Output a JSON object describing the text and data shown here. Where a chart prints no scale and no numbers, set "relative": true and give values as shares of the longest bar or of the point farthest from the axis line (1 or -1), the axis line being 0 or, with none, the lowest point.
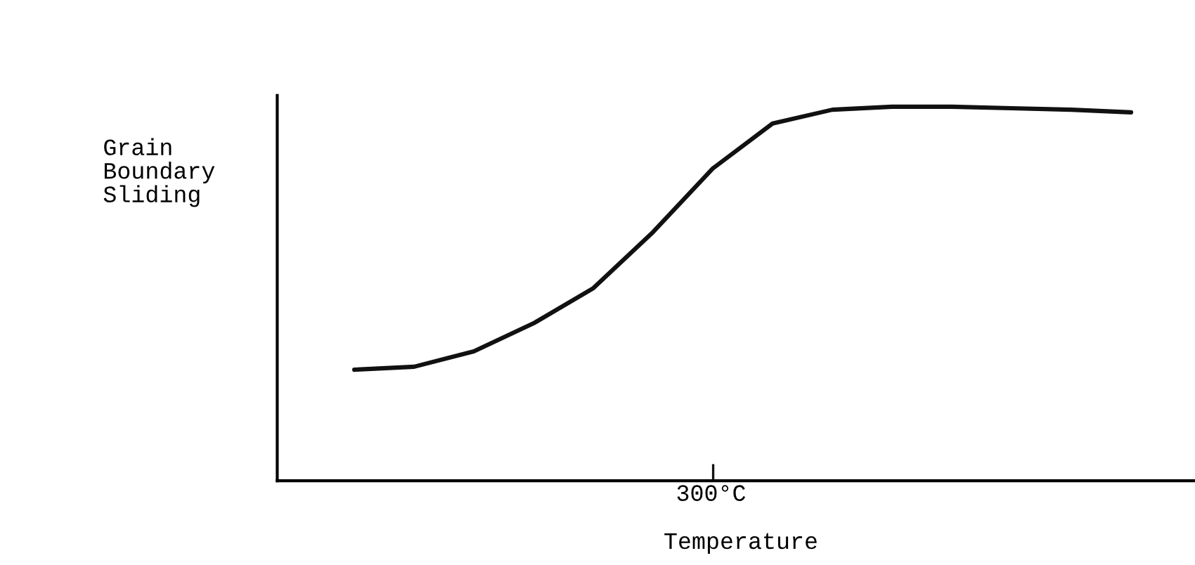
{
  "chart_data": {
    "type": "line",
    "relative": true,
    "xlabel": "Temperature",
    "ylabel": "Grain\nBoundary\nSliding",
    "categories": [
      null,
      null,
      null,
      null,
      null,
      null,
      null,
      null,
      null,
      null,
      null,
      null,
      null,
      null
    ],
    "annotations": [
      "300°C"
    ],
    "series": [
      {
        "color": "#111111",
        "values": [
          0.297,
          0.305,
          0.346,
          0.421,
          0.515,
          0.665,
          0.835,
          0.955,
          0.992,
          1,
          1,
          0.996,
          0.992,
          0.985
        ]
      }
    ],
    "legend": false,
    "marker": "none",
    "line_style": "solid"
  }
}
